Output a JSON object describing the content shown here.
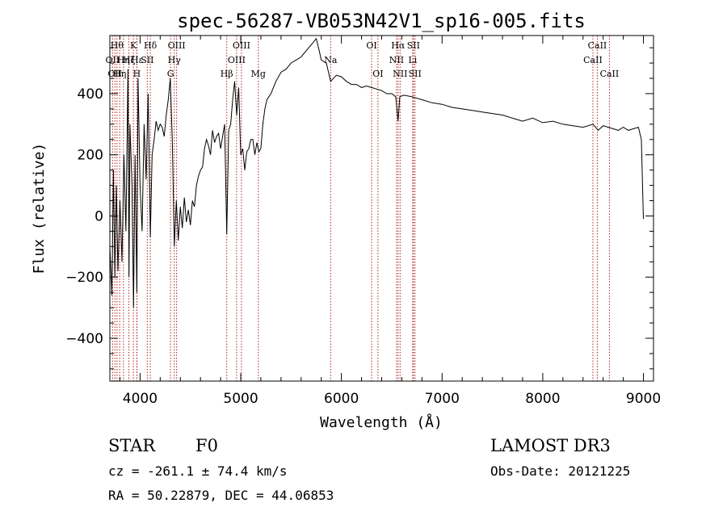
{
  "chart_data": {
    "type": "line",
    "title": "spec-56287-VB053N42V1_sp16-005.fits",
    "xlabel": "Wavelength (Å)",
    "ylabel": "Flux (relative)",
    "xlim": [
      3700,
      9100
    ],
    "ylim": [
      -540,
      590
    ],
    "x_ticks": [
      4000,
      5000,
      6000,
      7000,
      8000,
      9000
    ],
    "y_ticks": [
      -400,
      -200,
      0,
      200,
      400
    ],
    "grid": false,
    "series": [
      {
        "name": "flux",
        "x": [
          3700,
          3720,
          3735,
          3750,
          3765,
          3780,
          3800,
          3820,
          3840,
          3860,
          3880,
          3890,
          3900,
          3920,
          3935,
          3950,
          3968,
          3980,
          4000,
          4020,
          4040,
          4060,
          4080,
          4102,
          4120,
          4140,
          4160,
          4180,
          4200,
          4220,
          4240,
          4260,
          4280,
          4300,
          4320,
          4340,
          4360,
          4380,
          4400,
          4420,
          4440,
          4460,
          4480,
          4500,
          4520,
          4540,
          4560,
          4580,
          4600,
          4620,
          4640,
          4660,
          4680,
          4700,
          4720,
          4740,
          4760,
          4780,
          4800,
          4820,
          4840,
          4861,
          4880,
          4900,
          4920,
          4940,
          4960,
          4980,
          5000,
          5020,
          5040,
          5060,
          5080,
          5100,
          5120,
          5140,
          5160,
          5180,
          5200,
          5220,
          5240,
          5260,
          5280,
          5300,
          5350,
          5400,
          5450,
          5500,
          5550,
          5600,
          5650,
          5700,
          5750,
          5780,
          5800,
          5850,
          5893,
          5950,
          6000,
          6050,
          6100,
          6150,
          6200,
          6250,
          6300,
          6350,
          6400,
          6450,
          6500,
          6540,
          6563,
          6580,
          6620,
          6700,
          6800,
          6900,
          7000,
          7100,
          7200,
          7300,
          7400,
          7500,
          7600,
          7700,
          7800,
          7900,
          8000,
          8100,
          8200,
          8300,
          8400,
          8500,
          8550,
          8600,
          8650,
          8700,
          8750,
          8800,
          8850,
          8900,
          8950,
          8980,
          9000
        ],
        "values": [
          -100,
          -260,
          150,
          -200,
          100,
          -180,
          50,
          -150,
          200,
          -50,
          480,
          -200,
          300,
          100,
          -300,
          200,
          -250,
          450,
          100,
          -50,
          300,
          120,
          400,
          -70,
          200,
          250,
          310,
          280,
          300,
          290,
          260,
          330,
          380,
          450,
          250,
          -100,
          50,
          -80,
          30,
          -40,
          60,
          -20,
          20,
          -30,
          50,
          30,
          100,
          130,
          150,
          160,
          220,
          250,
          230,
          200,
          280,
          240,
          260,
          270,
          220,
          260,
          300,
          -60,
          280,
          300,
          380,
          440,
          330,
          420,
          200,
          220,
          150,
          210,
          220,
          250,
          250,
          200,
          240,
          210,
          220,
          300,
          350,
          380,
          390,
          400,
          440,
          470,
          480,
          500,
          510,
          520,
          540,
          560,
          580,
          540,
          510,
          500,
          440,
          460,
          455,
          440,
          430,
          430,
          420,
          425,
          420,
          415,
          410,
          400,
          400,
          390,
          310,
          390,
          395,
          390,
          380,
          370,
          365,
          355,
          350,
          345,
          340,
          335,
          330,
          320,
          310,
          320,
          305,
          310,
          300,
          295,
          290,
          300,
          280,
          295,
          290,
          285,
          280,
          290,
          280,
          285,
          290,
          250,
          -10
        ]
      }
    ],
    "lines": [
      {
        "wave": 3727,
        "label": "OII",
        "row": 1
      },
      {
        "wave": 3750,
        "label": "OII",
        "row": 2
      },
      {
        "wave": 3771,
        "label": "Hθ",
        "row": 0
      },
      {
        "wave": 3798,
        "label": "Hη",
        "row": 2
      },
      {
        "wave": 3835,
        "label": "Hη",
        "row": 1
      },
      {
        "wave": 3889,
        "label": "Hζ",
        "row": 1
      },
      {
        "wave": 3934,
        "label": "K",
        "row": 0
      },
      {
        "wave": 3968,
        "label": "H",
        "row": 2
      },
      {
        "wave": 3970,
        "label": "Hε",
        "row": 1
      },
      {
        "wave": 4072,
        "label": "SII",
        "row": 1
      },
      {
        "wave": 4102,
        "label": "Hδ",
        "row": 0
      },
      {
        "wave": 4303,
        "label": "G",
        "row": 2
      },
      {
        "wave": 4340,
        "label": "Hγ",
        "row": 1
      },
      {
        "wave": 4363,
        "label": "OIII",
        "row": 0
      },
      {
        "wave": 4861,
        "label": "Hβ",
        "row": 2
      },
      {
        "wave": 4959,
        "label": "OIII",
        "row": 1
      },
      {
        "wave": 5007,
        "label": "OIII",
        "row": 0
      },
      {
        "wave": 5175,
        "label": "Mg",
        "row": 2
      },
      {
        "wave": 5893,
        "label": "Na",
        "row": 1
      },
      {
        "wave": 6300,
        "label": "OI",
        "row": 0
      },
      {
        "wave": 6363,
        "label": "OI",
        "row": 2
      },
      {
        "wave": 6548,
        "label": "NII",
        "row": 1
      },
      {
        "wave": 6563,
        "label": "Hα",
        "row": 0
      },
      {
        "wave": 6583,
        "label": "NII",
        "row": 2
      },
      {
        "wave": 6708,
        "label": "Li",
        "row": 1
      },
      {
        "wave": 6716,
        "label": "SII",
        "row": 0
      },
      {
        "wave": 6731,
        "label": "SII",
        "row": 2
      },
      {
        "wave": 8498,
        "label": "CaII",
        "row": 1
      },
      {
        "wave": 8542,
        "label": "CaII",
        "row": 0
      },
      {
        "wave": 8662,
        "label": "CaII",
        "row": 2
      }
    ]
  },
  "info": {
    "class": "STAR",
    "subclass": "F0",
    "survey": "LAMOST DR3",
    "cz": "cz = -261.1 ± 74.4 km/s",
    "obs_date": "Obs-Date: 20121225",
    "coords": "RA =  50.22879, DEC =  44.06853"
  },
  "colors": {
    "line_marker": "#b22222",
    "spectrum": "#000000"
  }
}
